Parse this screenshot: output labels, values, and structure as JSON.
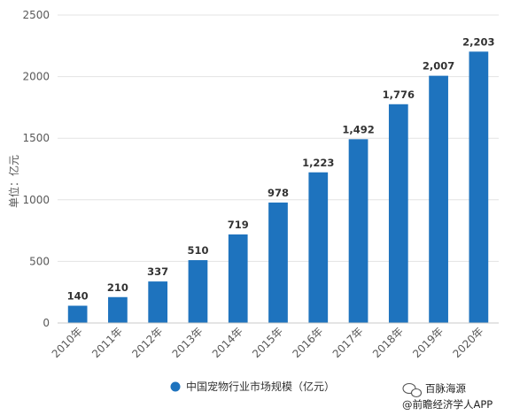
{
  "chart_data": {
    "type": "bar",
    "categories": [
      "2010年",
      "2011年",
      "2012年",
      "2013年",
      "2014年",
      "2015年",
      "2016年",
      "2017年",
      "2018年",
      "2019年",
      "2020年"
    ],
    "series": [
      {
        "name": "中国宠物行业市场规模（亿元）",
        "values": [
          140,
          210,
          337,
          510,
          719,
          978,
          1223,
          1492,
          1776,
          2007,
          2203
        ]
      }
    ],
    "data_labels": [
      "140",
      "210",
      "337",
      "510",
      "719",
      "978",
      "1,223",
      "1,492",
      "1,776",
      "2,007",
      "2,203"
    ],
    "ylabel": "单位：亿元",
    "ylim": [
      0,
      2500
    ],
    "yticks": [
      0,
      500,
      1000,
      1500,
      2000,
      2500
    ],
    "grid": true,
    "legend_position": "bottom-center",
    "bar_color": "#1e73be"
  },
  "watermark": {
    "line1": "百脉海源",
    "line2": "@前瞻经济学人APP"
  }
}
